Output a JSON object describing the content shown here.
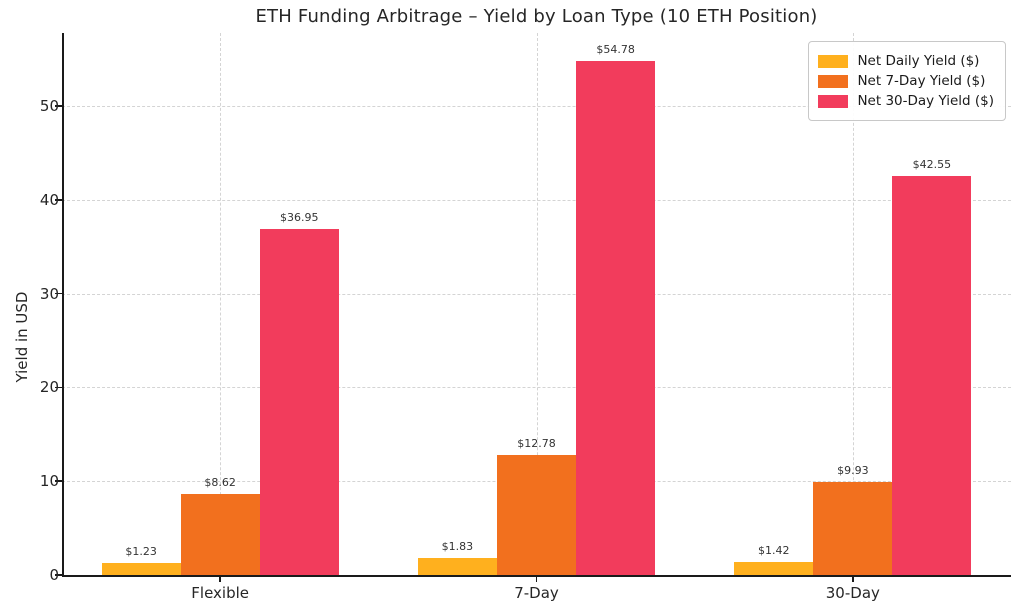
{
  "chart_data": {
    "type": "bar",
    "title": "ETH Funding Arbitrage – Yield by Loan Type (10 ETH Position)",
    "xlabel": "",
    "ylabel": "Yield in USD",
    "categories": [
      "Flexible",
      "7-Day",
      "30-Day"
    ],
    "series": [
      {
        "name": "Net Daily Yield ($)",
        "color": "#FFB01E",
        "values": [
          1.23,
          1.83,
          1.42
        ],
        "value_labels": [
          "$1.23",
          "$1.83",
          "$1.42"
        ]
      },
      {
        "name": "Net 7-Day Yield ($)",
        "color": "#F2701E",
        "values": [
          8.62,
          12.78,
          9.93
        ],
        "value_labels": [
          "$8.62",
          "$12.78",
          "$9.93"
        ]
      },
      {
        "name": "Net 30-Day Yield ($)",
        "color": "#F23C5C",
        "values": [
          36.95,
          54.78,
          42.55
        ],
        "value_labels": [
          "$36.95",
          "$54.78",
          "$42.55"
        ]
      }
    ],
    "yticks": [
      0,
      10,
      20,
      30,
      40,
      50
    ],
    "ylim": [
      0,
      57.8
    ],
    "bar_group_fraction": 0.25,
    "grid": "dashed, both axes",
    "legend_position": "upper right"
  }
}
